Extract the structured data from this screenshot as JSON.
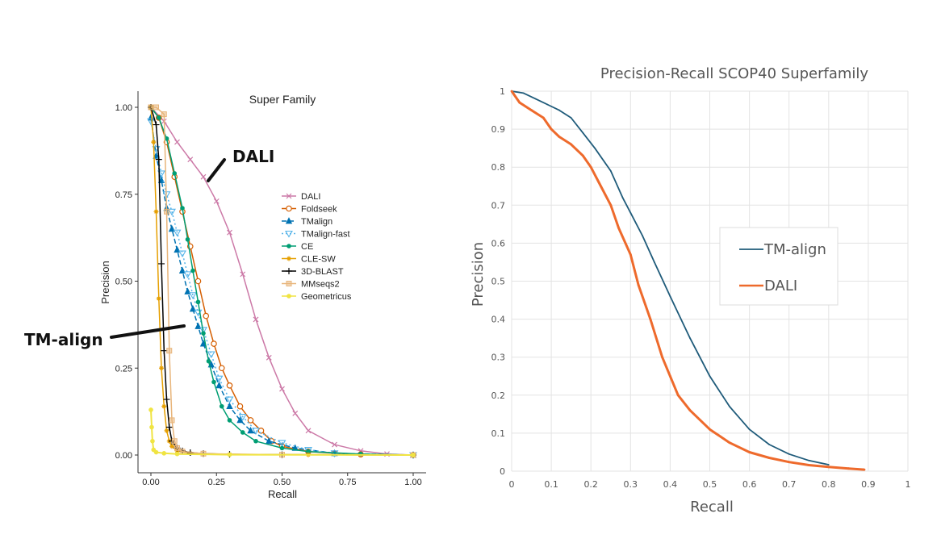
{
  "colors": {
    "DALI_left": "#cc79a7",
    "Foldseek": "#d55e00",
    "TMalign": "#0072b2",
    "TMalign-fast": "#56b4e9",
    "CE": "#009e73",
    "CLE-SW": "#e69f00",
    "3D-BLAST": "#000000",
    "MMseqs2": "#e8b57a",
    "Geometricus": "#f0e442",
    "TM-align_right": "#1f5b7a",
    "DALI_right": "#ee6a2c",
    "grid_right": "#e3e3e3"
  },
  "chart_data": [
    {
      "type": "line",
      "title": "Super Family",
      "xlabel": "Recall",
      "ylabel": "Precision",
      "xlim": [
        0,
        1
      ],
      "ylim": [
        0,
        1
      ],
      "xticks": [
        "0.00",
        "0.25",
        "0.50",
        "0.75",
        "1.00"
      ],
      "yticks": [
        "0.00",
        "0.25",
        "0.50",
        "0.75",
        "1.00"
      ],
      "legend_position": "center-right",
      "annotations": [
        "DALI",
        "TM-align"
      ],
      "series": [
        {
          "name": "DALI",
          "x": [
            0.0,
            0.05,
            0.1,
            0.15,
            0.2,
            0.25,
            0.3,
            0.35,
            0.4,
            0.45,
            0.5,
            0.55,
            0.6,
            0.7,
            0.8,
            0.9,
            1.0
          ],
          "y": [
            1.0,
            0.96,
            0.9,
            0.85,
            0.8,
            0.73,
            0.64,
            0.52,
            0.39,
            0.28,
            0.19,
            0.12,
            0.07,
            0.03,
            0.012,
            0.003,
            0.0
          ]
        },
        {
          "name": "Foldseek",
          "x": [
            0.0,
            0.03,
            0.06,
            0.09,
            0.12,
            0.15,
            0.18,
            0.21,
            0.24,
            0.27,
            0.3,
            0.34,
            0.38,
            0.42,
            0.46,
            0.5,
            0.6,
            0.7,
            0.8,
            1.0
          ],
          "y": [
            1.0,
            0.97,
            0.9,
            0.8,
            0.7,
            0.6,
            0.5,
            0.4,
            0.32,
            0.25,
            0.2,
            0.14,
            0.1,
            0.07,
            0.04,
            0.025,
            0.01,
            0.005,
            0.002,
            0.0
          ]
        },
        {
          "name": "TMalign",
          "x": [
            0.0,
            0.02,
            0.04,
            0.06,
            0.08,
            0.1,
            0.12,
            0.14,
            0.16,
            0.18,
            0.2,
            0.23,
            0.26,
            0.3,
            0.34,
            0.38,
            0.45,
            0.55,
            0.7,
            1.0
          ],
          "y": [
            0.97,
            0.86,
            0.79,
            0.71,
            0.65,
            0.59,
            0.53,
            0.47,
            0.42,
            0.37,
            0.32,
            0.26,
            0.2,
            0.14,
            0.1,
            0.07,
            0.04,
            0.02,
            0.005,
            0.0
          ]
        },
        {
          "name": "TMalign-fast",
          "x": [
            0.0,
            0.02,
            0.04,
            0.06,
            0.08,
            0.1,
            0.12,
            0.14,
            0.16,
            0.18,
            0.2,
            0.23,
            0.26,
            0.3,
            0.35,
            0.4,
            0.5,
            0.6,
            0.7,
            1.0
          ],
          "y": [
            0.96,
            0.88,
            0.81,
            0.75,
            0.7,
            0.64,
            0.58,
            0.52,
            0.46,
            0.41,
            0.36,
            0.29,
            0.22,
            0.16,
            0.11,
            0.07,
            0.035,
            0.015,
            0.005,
            0.0
          ]
        },
        {
          "name": "CE",
          "x": [
            0.0,
            0.03,
            0.06,
            0.09,
            0.12,
            0.14,
            0.16,
            0.18,
            0.2,
            0.22,
            0.24,
            0.27,
            0.3,
            0.35,
            0.4,
            0.5,
            0.6,
            0.8,
            1.0
          ],
          "y": [
            1.0,
            0.97,
            0.91,
            0.81,
            0.71,
            0.62,
            0.53,
            0.44,
            0.35,
            0.27,
            0.21,
            0.14,
            0.1,
            0.065,
            0.04,
            0.02,
            0.01,
            0.003,
            0.0
          ]
        },
        {
          "name": "CLE-SW",
          "x": [
            0.0,
            0.01,
            0.02,
            0.03,
            0.04,
            0.05,
            0.06,
            0.07,
            0.08,
            0.1,
            0.15,
            0.3,
            0.6,
            1.0
          ],
          "y": [
            1.0,
            0.9,
            0.7,
            0.45,
            0.25,
            0.14,
            0.07,
            0.04,
            0.025,
            0.012,
            0.005,
            0.002,
            0.001,
            0.0
          ]
        },
        {
          "name": "3D-BLAST",
          "x": [
            0.0,
            0.02,
            0.03,
            0.04,
            0.05,
            0.06,
            0.07,
            0.08,
            0.1,
            0.12,
            0.15,
            0.2,
            0.3,
            0.5,
            1.0
          ],
          "y": [
            1.0,
            0.95,
            0.85,
            0.55,
            0.3,
            0.16,
            0.08,
            0.04,
            0.02,
            0.012,
            0.007,
            0.004,
            0.002,
            0.001,
            0.0
          ]
        },
        {
          "name": "MMseqs2",
          "x": [
            0.0,
            0.02,
            0.05,
            0.06,
            0.07,
            0.08,
            0.09,
            0.1,
            0.12,
            0.2,
            0.5,
            1.0
          ],
          "y": [
            1.0,
            1.0,
            0.98,
            0.7,
            0.3,
            0.1,
            0.04,
            0.02,
            0.01,
            0.004,
            0.001,
            0.0
          ]
        },
        {
          "name": "Geometricus",
          "x": [
            0.0,
            0.003,
            0.006,
            0.01,
            0.02,
            0.05,
            0.1,
            0.3,
            1.0
          ],
          "y": [
            0.13,
            0.08,
            0.04,
            0.015,
            0.008,
            0.005,
            0.003,
            0.001,
            0.0
          ]
        }
      ]
    },
    {
      "type": "line",
      "title": "Precision-Recall SCOP40 Superfamily",
      "xlabel": "Recall",
      "ylabel": "Precision",
      "xlim": [
        0,
        1
      ],
      "ylim": [
        0,
        1
      ],
      "xticks": [
        "0",
        "0.1",
        "0.2",
        "0.3",
        "0.4",
        "0.5",
        "0.6",
        "0.7",
        "0.8",
        "0.9",
        "1"
      ],
      "yticks": [
        "0",
        "0.1",
        "0.2",
        "0.3",
        "0.4",
        "0.5",
        "0.6",
        "0.7",
        "0.8",
        "0.9",
        "1"
      ],
      "grid": true,
      "legend_position": "center-right",
      "series": [
        {
          "name": "TM-align",
          "x": [
            0.0,
            0.03,
            0.06,
            0.09,
            0.12,
            0.15,
            0.18,
            0.21,
            0.25,
            0.28,
            0.3,
            0.33,
            0.36,
            0.4,
            0.45,
            0.5,
            0.55,
            0.6,
            0.65,
            0.7,
            0.75,
            0.8
          ],
          "y": [
            1.0,
            0.995,
            0.98,
            0.965,
            0.95,
            0.93,
            0.89,
            0.85,
            0.79,
            0.72,
            0.68,
            0.62,
            0.55,
            0.46,
            0.35,
            0.25,
            0.17,
            0.11,
            0.07,
            0.045,
            0.028,
            0.017
          ]
        },
        {
          "name": "DALI",
          "x": [
            0.0,
            0.02,
            0.05,
            0.08,
            0.1,
            0.12,
            0.15,
            0.18,
            0.2,
            0.22,
            0.25,
            0.27,
            0.3,
            0.32,
            0.35,
            0.38,
            0.4,
            0.42,
            0.45,
            0.5,
            0.55,
            0.6,
            0.65,
            0.7,
            0.75,
            0.8,
            0.85,
            0.89
          ],
          "y": [
            1.0,
            0.97,
            0.95,
            0.93,
            0.9,
            0.88,
            0.86,
            0.83,
            0.8,
            0.76,
            0.7,
            0.64,
            0.57,
            0.49,
            0.4,
            0.3,
            0.25,
            0.2,
            0.16,
            0.11,
            0.075,
            0.05,
            0.035,
            0.024,
            0.016,
            0.011,
            0.007,
            0.004
          ]
        }
      ]
    }
  ]
}
